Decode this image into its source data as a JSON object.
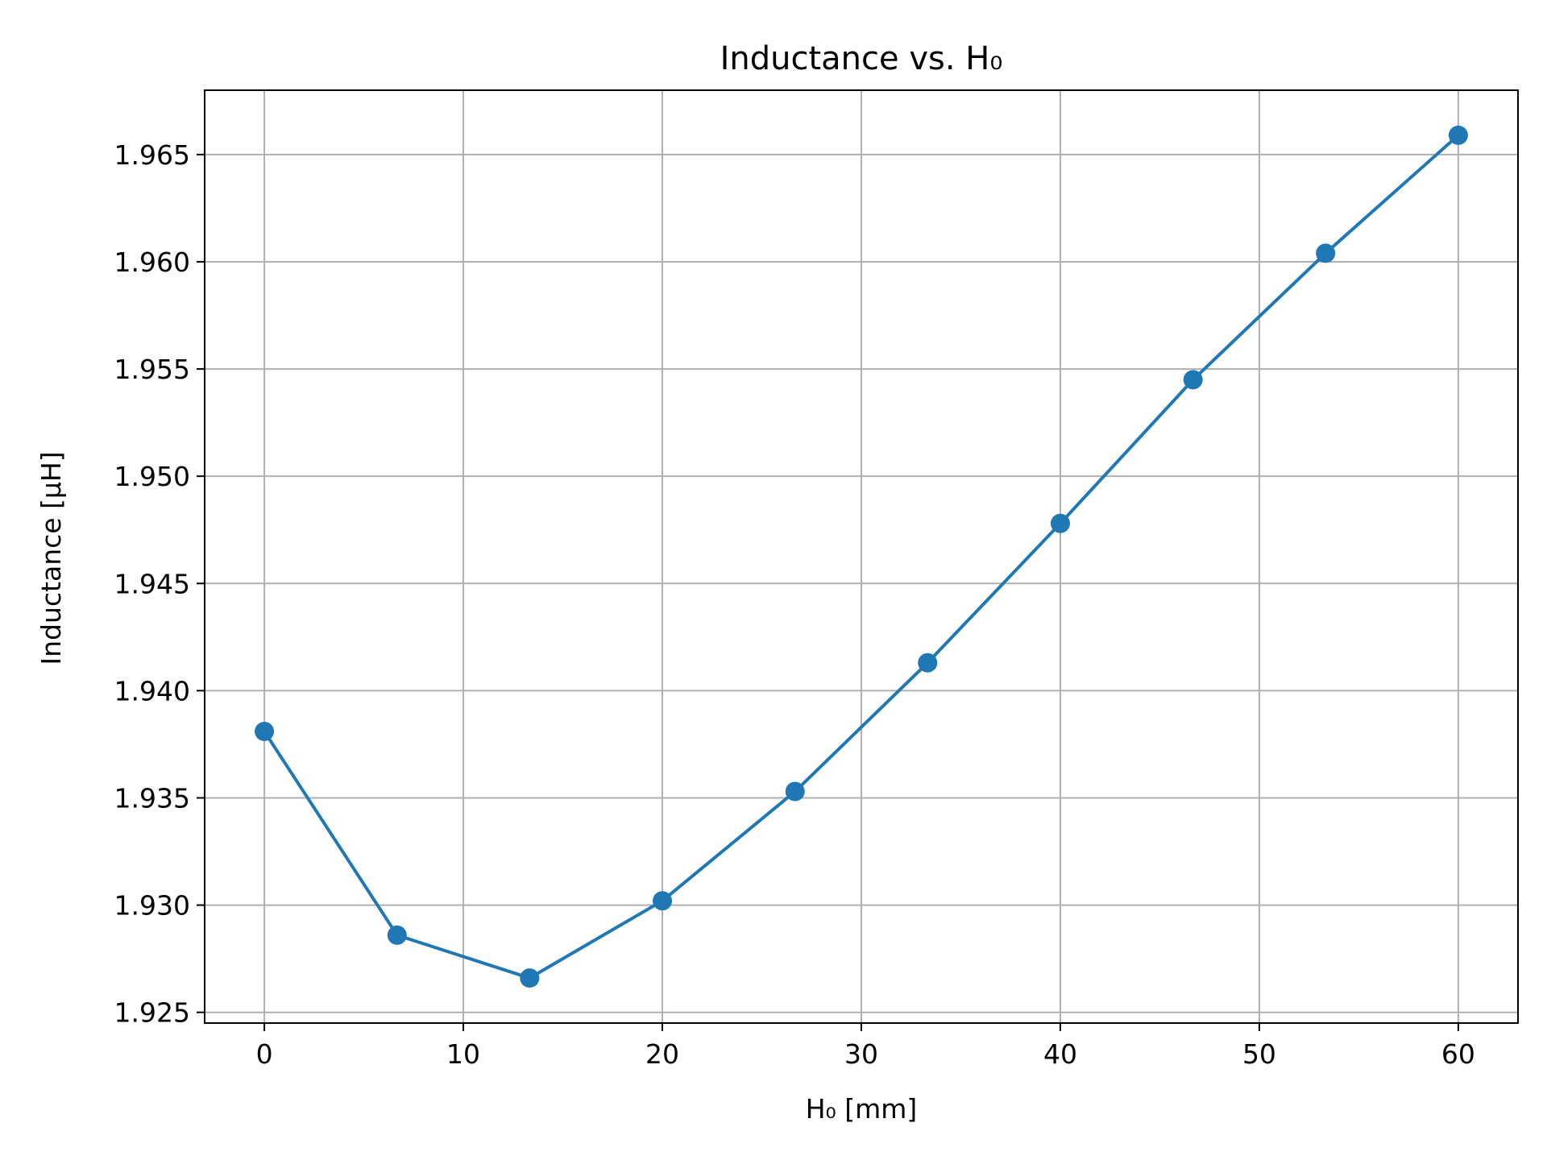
{
  "chart_data": {
    "type": "line",
    "title": "Inductance vs. H₀",
    "xlabel": "H₀ [mm]",
    "ylabel": "Inductance [μH]",
    "xlim": [
      -3,
      63
    ],
    "ylim": [
      1.9245,
      1.968
    ],
    "xticks": [
      0,
      10,
      20,
      30,
      40,
      50,
      60
    ],
    "xtick_labels": [
      "0",
      "10",
      "20",
      "30",
      "40",
      "50",
      "60"
    ],
    "yticks": [
      1.925,
      1.93,
      1.935,
      1.94,
      1.945,
      1.95,
      1.955,
      1.96,
      1.965
    ],
    "ytick_labels": [
      "1.925",
      "1.930",
      "1.935",
      "1.940",
      "1.945",
      "1.950",
      "1.955",
      "1.960",
      "1.965"
    ],
    "grid": true,
    "series": [
      {
        "color": "#1f77b4",
        "marker": "circle",
        "x": [
          0,
          6.67,
          13.33,
          20,
          26.67,
          33.33,
          40,
          46.67,
          53.33,
          60
        ],
        "y": [
          1.9381,
          1.9286,
          1.9266,
          1.9302,
          1.9353,
          1.9413,
          1.9478,
          1.9545,
          1.9604,
          1.9659
        ]
      }
    ]
  }
}
